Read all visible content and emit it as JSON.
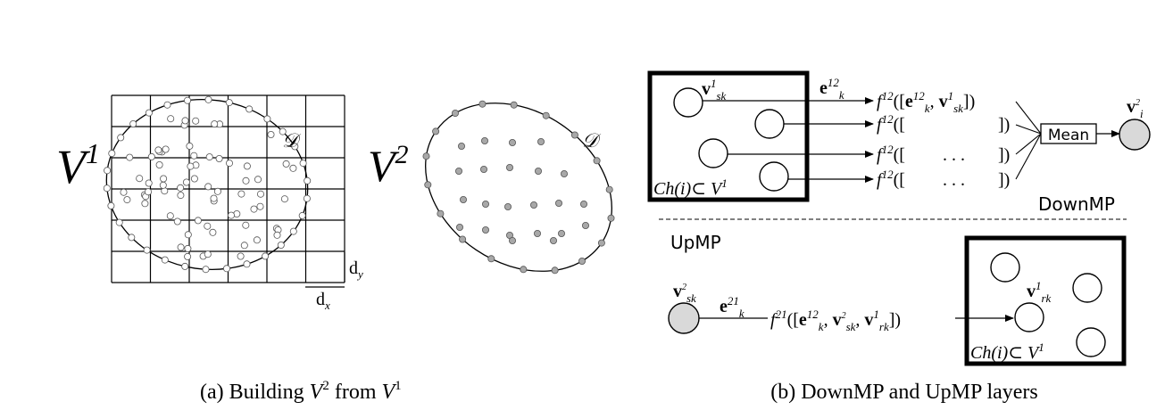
{
  "panel_a": {
    "v1_label": "V",
    "v1_sup": "1",
    "v2_label": "V",
    "v2_sup": "2",
    "domain_label": "𝒟",
    "dx_label": "d",
    "dx_sub": "x",
    "dy_label": "d",
    "dy_sub": "y",
    "caption_prefix": "(a) Building ",
    "caption_v": "V",
    "caption_sup1": "2",
    "caption_mid": " from ",
    "caption_sup2": "1"
  },
  "panel_b": {
    "down": {
      "v_node": "v",
      "v_node_sup": "1",
      "v_node_sub": "sk",
      "edge": "e",
      "edge_sup": "12",
      "edge_sub": "k",
      "f1": {
        "f": "f",
        "sup": "12",
        "open": "([",
        "e": "e",
        "e_sup": "12",
        "e_sub": "k",
        "comma": ", ",
        "v": "v",
        "v_sup": "1",
        "v_sub": "sk",
        "close": "])"
      },
      "f_rows": [
        {
          "f": "f",
          "sup": "12",
          "open": "([",
          "dots": "",
          "close": "])"
        },
        {
          "f": "f",
          "sup": "12",
          "open": "([",
          "dots": ". . .",
          "close": "])"
        },
        {
          "f": "f",
          "sup": "12",
          "open": "([",
          "dots": ". . .",
          "close": "])"
        }
      ],
      "mean_label": "Mean",
      "out_node": "v",
      "out_sup": "2",
      "out_sub": "i",
      "ch_label": "Ch(i)⊂ V",
      "ch_sup": "1",
      "section_label": "DownMP"
    },
    "up": {
      "section_label": "UpMP",
      "in_node": "v",
      "in_sup": "2",
      "in_sub": "sk",
      "edge": "e",
      "edge_sup": "21",
      "edge_sub": "k",
      "f": {
        "f": "f",
        "sup": "21",
        "open": "([",
        "e": "e",
        "e_sup": "12",
        "e_sub": "k",
        "comma1": ", ",
        "v1": "v",
        "v1_sup": "2",
        "v1_sub": "sk",
        "comma2": ", ",
        "v2": "v",
        "v2_sup": "1",
        "v2_sub": "rk",
        "close": "])"
      },
      "target_node": "v",
      "target_sup": "1",
      "target_sub": "rk",
      "ch_label": "Ch(i)⊂ V",
      "ch_sup": "1"
    },
    "caption": "(b) DownMP and UpMP layers"
  },
  "colors": {
    "node_fill_gray": "#d9d9d9",
    "dot_fill": "#a8a8a8",
    "stroke": "#000000"
  }
}
